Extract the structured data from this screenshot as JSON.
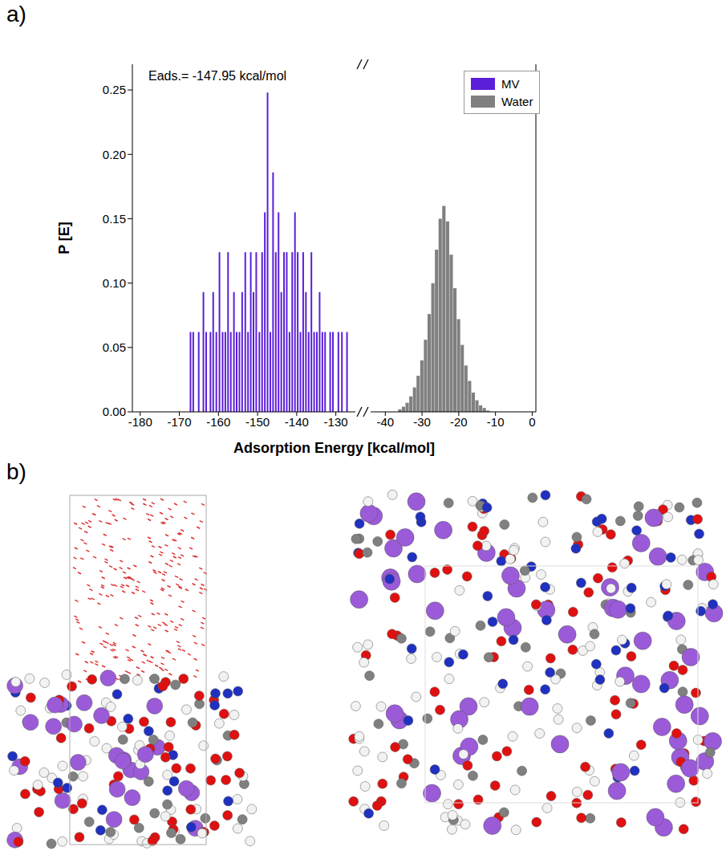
{
  "panel_labels": [
    "a)",
    "b)"
  ],
  "chart_data": [
    {
      "type": "bar",
      "annotation": "Eads.= -147.95 kcal/mol",
      "x_label": "Adsorption Energy [kcal/mol]",
      "y_label": "P [E]",
      "xlim": [
        -182,
        -125
      ],
      "xticks": [
        -180,
        -170,
        -160,
        -150,
        -140,
        -130
      ],
      "ylim": [
        0,
        0.27
      ],
      "yticks": [
        {
          "value": 0,
          "label": "0.00"
        },
        0.05,
        {
          "value": 0.1,
          "label": "0.10"
        },
        0.15,
        {
          "value": 0.2,
          "label": "0.20"
        },
        0.25
      ],
      "series": [
        {
          "name": "MV",
          "color": "#5b1fd9",
          "x": [
            -167.2,
            -166.5,
            -165.1,
            -163.9,
            -163.2,
            -162.1,
            -161.4,
            -160.6,
            -159.8,
            -159.0,
            -158.3,
            -157.6,
            -156.9,
            -156.1,
            -155.4,
            -154.7,
            -154.0,
            -153.2,
            -152.5,
            -151.8,
            -151.1,
            -150.4,
            -149.6,
            -148.9,
            -148.2,
            -147.5,
            -146.8,
            -146.1,
            -145.4,
            -144.7,
            -144.0,
            -143.3,
            -142.6,
            -141.9,
            -141.2,
            -140.5,
            -139.8,
            -139.1,
            -138.4,
            -137.7,
            -137.0,
            -136.3,
            -135.6,
            -134.9,
            -134.2,
            -133.5,
            -132.8,
            -131.5,
            -130.8,
            -129.4,
            -128.5,
            -127.2
          ],
          "values": [
            0.062,
            0.062,
            0.062,
            0.093,
            0.062,
            0.062,
            0.093,
            0.062,
            0.124,
            0.062,
            0.062,
            0.124,
            0.062,
            0.093,
            0.062,
            0.062,
            0.093,
            0.124,
            0.062,
            0.124,
            0.093,
            0.124,
            0.062,
            0.124,
            0.155,
            0.248,
            0.062,
            0.186,
            0.124,
            0.155,
            0.093,
            0.124,
            0.124,
            0.062,
            0.124,
            0.155,
            0.124,
            0.062,
            0.124,
            0.093,
            0.062,
            0.124,
            0.062,
            0.062,
            0.093,
            0.062,
            0.062,
            0.062,
            0.062,
            0.062,
            0.062,
            0.062
          ]
        }
      ]
    },
    {
      "type": "bar",
      "xlim": [
        -44,
        1
      ],
      "xticks": [
        -40,
        -30,
        -20,
        -10,
        0
      ],
      "ylim": [
        0,
        0.27
      ],
      "tick_labels": "x",
      "legend": "upper right",
      "series": [
        {
          "name": "Water",
          "color": "#808080",
          "x": [
            -36,
            -35,
            -34,
            -33,
            -32,
            -31,
            -30,
            -29,
            -28,
            -27,
            -26,
            -25,
            -24,
            -23,
            -22,
            -21,
            -20,
            -19,
            -18,
            -17,
            -16,
            -15,
            -14,
            -13,
            -12
          ],
          "values": [
            0.002,
            0.004,
            0.007,
            0.012,
            0.019,
            0.028,
            0.04,
            0.056,
            0.076,
            0.1,
            0.126,
            0.15,
            0.16,
            0.148,
            0.122,
            0.096,
            0.072,
            0.052,
            0.036,
            0.024,
            0.015,
            0.009,
            0.005,
            0.003,
            0.001
          ]
        }
      ]
    }
  ]
}
